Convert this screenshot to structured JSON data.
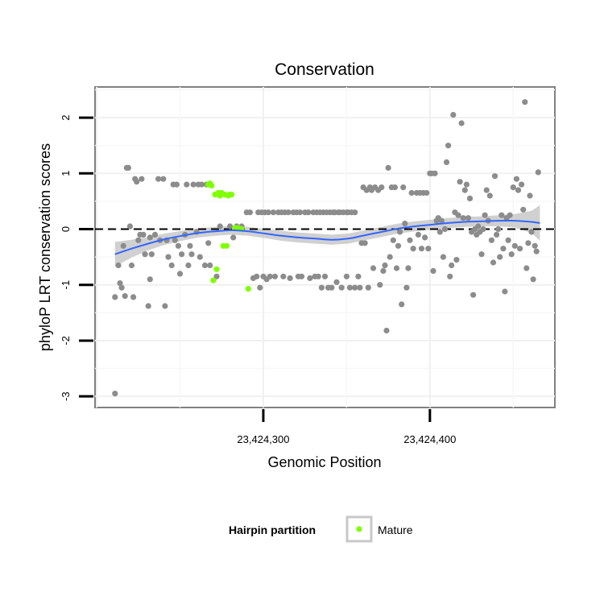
{
  "chart_data": {
    "type": "scatter",
    "title": "Conservation",
    "xlabel": "Genomic Position",
    "ylabel": "phyloP LRT conservation scores",
    "xlim": [
      23424199,
      23424475
    ],
    "ylim": [
      -3.2,
      2.55
    ],
    "x_ticks": [
      23424300,
      23424400
    ],
    "x_tick_labels": [
      "23,424,300",
      "23,424,400"
    ],
    "y_ticks": [
      -3,
      -2,
      -1,
      0,
      1,
      2
    ],
    "y_tick_labels": [
      "-3",
      "-2",
      "-1",
      "0",
      "1",
      "2"
    ],
    "grid": true,
    "reference_line": {
      "y": 0,
      "style": "dashed"
    },
    "legend": {
      "title": "Hairpin partition",
      "placement": "bottom",
      "items": [
        {
          "name": "Mature",
          "color": "#7fff00"
        }
      ]
    },
    "colors": {
      "other": "#8c8c8c",
      "mature": "#7fff00",
      "smooth": "#3366ff",
      "ribbon": "#c8c8c8"
    },
    "series": [
      {
        "name": "",
        "color": "#8c8c8c",
        "points": [
          [
            23424211,
            -2.95
          ],
          [
            23424211,
            -1.22
          ],
          [
            23424213,
            -0.65
          ],
          [
            23424214,
            -0.97
          ],
          [
            23424215,
            -1.05
          ],
          [
            23424216,
            -0.3
          ],
          [
            23424217,
            -1.2
          ],
          [
            23424218,
            1.1
          ],
          [
            23424219,
            1.1
          ],
          [
            23424220,
            0.05
          ],
          [
            23424221,
            -0.65
          ],
          [
            23424222,
            -1.22
          ],
          [
            23424223,
            0.9
          ],
          [
            23424224,
            0.85
          ],
          [
            23424225,
            -0.2
          ],
          [
            23424226,
            -0.1
          ],
          [
            23424227,
            0.9
          ],
          [
            23424228,
            -0.1
          ],
          [
            23424229,
            -0.45
          ],
          [
            23424231,
            -1.38
          ],
          [
            23424232,
            -0.9
          ],
          [
            23424232,
            -0.15
          ],
          [
            23424233,
            -0.45
          ],
          [
            23424235,
            -0.1
          ],
          [
            23424237,
            0.9
          ],
          [
            23424238,
            -0.2
          ],
          [
            23424240,
            0.9
          ],
          [
            23424241,
            -1.38
          ],
          [
            23424242,
            -0.2
          ],
          [
            23424243,
            -0.5
          ],
          [
            23424245,
            -0.65
          ],
          [
            23424246,
            0.8
          ],
          [
            23424247,
            -0.2
          ],
          [
            23424248,
            0.8
          ],
          [
            23424249,
            -0.3
          ],
          [
            23424250,
            -0.8
          ],
          [
            23424251,
            -0.45
          ],
          [
            23424253,
            -0.1
          ],
          [
            23424254,
            0.8
          ],
          [
            23424255,
            -0.65
          ],
          [
            23424256,
            -0.3
          ],
          [
            23424257,
            -0.45
          ],
          [
            23424258,
            0.8
          ],
          [
            23424260,
            -0.05
          ],
          [
            23424261,
            0.8
          ],
          [
            23424262,
            -0.5
          ],
          [
            23424263,
            0.8
          ],
          [
            23424265,
            -0.65
          ],
          [
            23424266,
            0.8
          ],
          [
            23424267,
            -0.25
          ],
          [
            23424268,
            -0.65
          ],
          [
            23424272,
            -0.85
          ],
          [
            23424274,
            0.05
          ],
          [
            23424280,
            0.05
          ],
          [
            23424282,
            -0.15
          ],
          [
            23424284,
            0.05
          ],
          [
            23424287,
            0.05
          ],
          [
            23424290,
            0.3
          ],
          [
            23424292,
            0.3
          ],
          [
            23424294,
            -0.88
          ],
          [
            23424296,
            -0.85
          ],
          [
            23424297,
            0.3
          ],
          [
            23424298,
            -1.05
          ],
          [
            23424299,
            0.3
          ],
          [
            23424300,
            -0.85
          ],
          [
            23424301,
            0.3
          ],
          [
            23424302,
            -0.9
          ],
          [
            23424303,
            0.3
          ],
          [
            23424304,
            -0.85
          ],
          [
            23424306,
            0.3
          ],
          [
            23424307,
            -0.85
          ],
          [
            23424309,
            0.3
          ],
          [
            23424311,
            0.3
          ],
          [
            23424312,
            -0.85
          ],
          [
            23424313,
            0.3
          ],
          [
            23424315,
            0.3
          ],
          [
            23424316,
            -0.88
          ],
          [
            23424318,
            0.3
          ],
          [
            23424320,
            0.3
          ],
          [
            23424321,
            -0.85
          ],
          [
            23424322,
            0.3
          ],
          [
            23424323,
            -0.85
          ],
          [
            23424325,
            0.3
          ],
          [
            23424327,
            0.3
          ],
          [
            23424328,
            -0.88
          ],
          [
            23424330,
            0.3
          ],
          [
            23424331,
            -0.85
          ],
          [
            23424332,
            0.3
          ],
          [
            23424333,
            -0.85
          ],
          [
            23424334,
            0.3
          ],
          [
            23424335,
            -1.05
          ],
          [
            23424336,
            0.3
          ],
          [
            23424337,
            -0.85
          ],
          [
            23424338,
            0.3
          ],
          [
            23424339,
            -1.05
          ],
          [
            23424340,
            0.3
          ],
          [
            23424341,
            -1.05
          ],
          [
            23424342,
            0.3
          ],
          [
            23424343,
            0.3
          ],
          [
            23424344,
            -0.95
          ],
          [
            23424345,
            0.3
          ],
          [
            23424346,
            0.3
          ],
          [
            23424347,
            -1.05
          ],
          [
            23424348,
            0.3
          ],
          [
            23424350,
            0.3
          ],
          [
            23424350,
            -0.85
          ],
          [
            23424351,
            0.3
          ],
          [
            23424352,
            -1.05
          ],
          [
            23424353,
            0.3
          ],
          [
            23424355,
            0.3
          ],
          [
            23424355,
            -1.05
          ],
          [
            23424357,
            -0.85
          ],
          [
            23424358,
            -1.05
          ],
          [
            23424359,
            -0.25
          ],
          [
            23424360,
            0.75
          ],
          [
            23424361,
            -0.25
          ],
          [
            23424362,
            0.7
          ],
          [
            23424363,
            -1.05
          ],
          [
            23424364,
            0.75
          ],
          [
            23424365,
            0.7
          ],
          [
            23424366,
            -0.7
          ],
          [
            23424367,
            0.75
          ],
          [
            23424369,
            0.7
          ],
          [
            23424370,
            -1.0
          ],
          [
            23424371,
            0.75
          ],
          [
            23424372,
            -0.75
          ],
          [
            23424373,
            -0.65
          ],
          [
            23424374,
            -1.82
          ],
          [
            23424375,
            1.1
          ],
          [
            23424376,
            -0.5
          ],
          [
            23424377,
            0.75
          ],
          [
            23424378,
            -0.2
          ],
          [
            23424379,
            0.75
          ],
          [
            23424380,
            -0.7
          ],
          [
            23424381,
            -0.3
          ],
          [
            23424382,
            -0.05
          ],
          [
            23424383,
            -1.35
          ],
          [
            23424384,
            0.75
          ],
          [
            23424385,
            0.1
          ],
          [
            23424386,
            -1.05
          ],
          [
            23424387,
            -0.7
          ],
          [
            23424388,
            -0.2
          ],
          [
            23424389,
            0.65
          ],
          [
            23424390,
            -0.35
          ],
          [
            23424392,
            0.65
          ],
          [
            23424393,
            -0.1
          ],
          [
            23424394,
            0.65
          ],
          [
            23424395,
            -0.35
          ],
          [
            23424396,
            0.65
          ],
          [
            23424397,
            -0.15
          ],
          [
            23424398,
            0.65
          ],
          [
            23424399,
            -0.35
          ],
          [
            23424400,
            1.0
          ],
          [
            23424401,
            1.0
          ],
          [
            23424402,
            -0.75
          ],
          [
            23424403,
            1.0
          ],
          [
            23424404,
            0.15
          ],
          [
            23424405,
            0.2
          ],
          [
            23424406,
            -0.05
          ],
          [
            23424407,
            0.15
          ],
          [
            23424408,
            -0.5
          ],
          [
            23424409,
            0.0
          ],
          [
            23424410,
            1.2
          ],
          [
            23424411,
            1.5
          ],
          [
            23424412,
            -0.85
          ],
          [
            23424413,
            -0.65
          ],
          [
            23424414,
            2.05
          ],
          [
            23424415,
            0.3
          ],
          [
            23424416,
            -0.55
          ],
          [
            23424417,
            0.25
          ],
          [
            23424418,
            0.85
          ],
          [
            23424419,
            1.9
          ],
          [
            23424420,
            0.2
          ],
          [
            23424421,
            0.7
          ],
          [
            23424422,
            0.8
          ],
          [
            23424423,
            0.2
          ],
          [
            23424424,
            0.55
          ],
          [
            23424425,
            -0.05
          ],
          [
            23424426,
            -1.18
          ],
          [
            23424427,
            0.0
          ],
          [
            23424428,
            -0.1
          ],
          [
            23424429,
            0.05
          ],
          [
            23424430,
            -0.05
          ],
          [
            23424431,
            -0.45
          ],
          [
            23424432,
            0.0
          ],
          [
            23424433,
            0.25
          ],
          [
            23424434,
            0.7
          ],
          [
            23424435,
            0.15
          ],
          [
            23424436,
            0.6
          ],
          [
            23424437,
            -0.2
          ],
          [
            23424438,
            -0.6
          ],
          [
            23424439,
            0.95
          ],
          [
            23424440,
            -0.1
          ],
          [
            23424441,
            0.0
          ],
          [
            23424442,
            -0.5
          ],
          [
            23424443,
            0.25
          ],
          [
            23424444,
            -0.35
          ],
          [
            23424445,
            -1.12
          ],
          [
            23424446,
            0.2
          ],
          [
            23424447,
            -0.2
          ],
          [
            23424448,
            0.25
          ],
          [
            23424449,
            -0.45
          ],
          [
            23424450,
            0.75
          ],
          [
            23424451,
            -0.3
          ],
          [
            23424452,
            0.9
          ],
          [
            23424453,
            0.7
          ],
          [
            23424454,
            -0.35
          ],
          [
            23424455,
            0.8
          ],
          [
            23424456,
            0.35
          ],
          [
            23424457,
            2.28
          ],
          [
            23424458,
            -0.7
          ],
          [
            23424459,
            -0.25
          ],
          [
            23424460,
            0.6
          ],
          [
            23424461,
            -0.05
          ],
          [
            23424462,
            -0.9
          ],
          [
            23424463,
            -0.3
          ],
          [
            23424464,
            -0.4
          ],
          [
            23424465,
            1.02
          ]
        ]
      },
      {
        "name": "Mature",
        "color": "#7fff00",
        "points": [
          [
            23424267,
            0.8
          ],
          [
            23424268,
            0.82
          ],
          [
            23424269,
            0.78
          ],
          [
            23424270,
            -0.92
          ],
          [
            23424272,
            -0.72
          ],
          [
            23424271,
            0.62
          ],
          [
            23424273,
            0.65
          ],
          [
            23424274,
            0.6
          ],
          [
            23424275,
            0.65
          ],
          [
            23424276,
            -0.3
          ],
          [
            23424277,
            0.62
          ],
          [
            23424278,
            -0.3
          ],
          [
            23424279,
            0.6
          ],
          [
            23424280,
            0.62
          ],
          [
            23424281,
            0.62
          ],
          [
            23424283,
            0.02
          ],
          [
            23424285,
            0.02
          ],
          [
            23424287,
            0.0
          ],
          [
            23424291,
            -1.07
          ]
        ]
      }
    ],
    "smooth": {
      "x": [
        23424211,
        23424221,
        23424231,
        23424241,
        23424251,
        23424261,
        23424271,
        23424281,
        23424291,
        23424301,
        23424311,
        23424321,
        23424331,
        23424341,
        23424351,
        23424361,
        23424371,
        23424381,
        23424391,
        23424401,
        23424411,
        23424421,
        23424431,
        23424441,
        23424451,
        23424461,
        23424466
      ],
      "y": [
        -0.45,
        -0.35,
        -0.26,
        -0.18,
        -0.12,
        -0.07,
        -0.04,
        -0.02,
        -0.04,
        -0.08,
        -0.12,
        -0.15,
        -0.17,
        -0.19,
        -0.17,
        -0.11,
        -0.05,
        0.01,
        0.05,
        0.08,
        0.11,
        0.13,
        0.14,
        0.15,
        0.15,
        0.13,
        0.11
      ],
      "se": [
        0.22,
        0.16,
        0.12,
        0.1,
        0.09,
        0.08,
        0.08,
        0.08,
        0.08,
        0.08,
        0.09,
        0.09,
        0.09,
        0.09,
        0.09,
        0.09,
        0.09,
        0.09,
        0.09,
        0.09,
        0.09,
        0.09,
        0.09,
        0.1,
        0.12,
        0.2,
        0.32
      ]
    }
  }
}
